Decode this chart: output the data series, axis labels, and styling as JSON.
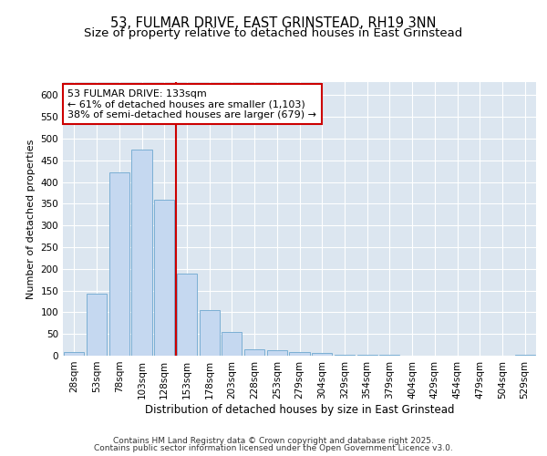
{
  "title1": "53, FULMAR DRIVE, EAST GRINSTEAD, RH19 3NN",
  "title2": "Size of property relative to detached houses in East Grinstead",
  "xlabel": "Distribution of detached houses by size in East Grinstead",
  "ylabel": "Number of detached properties",
  "categories": [
    "28sqm",
    "53sqm",
    "78sqm",
    "103sqm",
    "128sqm",
    "153sqm",
    "178sqm",
    "203sqm",
    "228sqm",
    "253sqm",
    "279sqm",
    "304sqm",
    "329sqm",
    "354sqm",
    "379sqm",
    "404sqm",
    "429sqm",
    "454sqm",
    "479sqm",
    "504sqm",
    "529sqm"
  ],
  "values": [
    8,
    143,
    422,
    475,
    360,
    190,
    105,
    54,
    14,
    12,
    9,
    6,
    3,
    2,
    2,
    1,
    0,
    0,
    0,
    0,
    3
  ],
  "bar_color": "#c5d8f0",
  "bar_edge_color": "#7bafd4",
  "vline_x": 4.5,
  "vline_color": "#cc0000",
  "annotation_line1": "53 FULMAR DRIVE: 133sqm",
  "annotation_line2": "← 61% of detached houses are smaller (1,103)",
  "annotation_line3": "38% of semi-detached houses are larger (679) →",
  "annotation_box_color": "#ffffff",
  "annotation_box_edge": "#cc0000",
  "ylim": [
    0,
    630
  ],
  "yticks": [
    0,
    50,
    100,
    150,
    200,
    250,
    300,
    350,
    400,
    450,
    500,
    550,
    600
  ],
  "plot_bg_color": "#dce6f0",
  "fig_bg_color": "#ffffff",
  "footer_text1": "Contains HM Land Registry data © Crown copyright and database right 2025.",
  "footer_text2": "Contains public sector information licensed under the Open Government Licence v3.0.",
  "title1_fontsize": 10.5,
  "title2_fontsize": 9.5,
  "xlabel_fontsize": 8.5,
  "ylabel_fontsize": 8,
  "tick_fontsize": 7.5,
  "annot_fontsize": 8,
  "footer_fontsize": 6.5
}
